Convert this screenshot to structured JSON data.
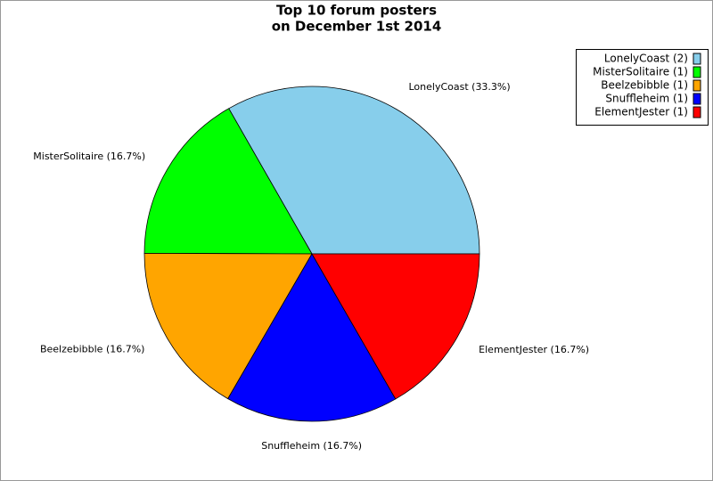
{
  "chart_data": {
    "type": "pie",
    "title": [
      "Top 10 forum posters",
      "on December 1st 2014"
    ],
    "categories": [
      "LonelyCoast",
      "MisterSolitaire",
      "Beelzebibble",
      "Snuffleheim",
      "ElementJester"
    ],
    "values": [
      33.3,
      16.7,
      16.7,
      16.7,
      16.7
    ],
    "value_labels": [
      "LonelyCoast (33.3%)",
      "MisterSolitaire (16.7%)",
      "Beelzebibble (16.7%)",
      "Snuffleheim (16.7%)",
      "ElementJester (16.7%)"
    ],
    "legend_labels": [
      "LonelyCoast (2)",
      "MisterSolitaire (1)",
      "Beelzebibble (1)",
      "Snuffleheim (1)",
      "ElementJester (1)"
    ],
    "colors": [
      "#87ceeb",
      "#00ff00",
      "#ffa500",
      "#0000ff",
      "#ff0000"
    ],
    "legend": "top-right"
  }
}
